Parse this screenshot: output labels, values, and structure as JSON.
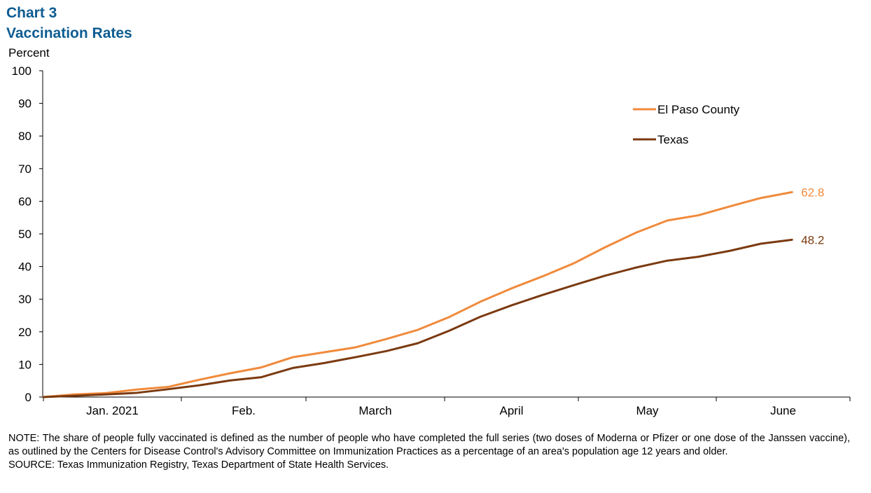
{
  "chart_number": "Chart 3",
  "chart_data": {
    "type": "line",
    "title": "Vaccination Rates",
    "ylabel": "Percent",
    "xlabel": "",
    "ylim": [
      0,
      100
    ],
    "yticks": [
      0,
      10,
      20,
      30,
      40,
      50,
      60,
      70,
      80,
      90,
      100
    ],
    "month_labels": [
      "Jan. 2021",
      "Feb.",
      "March",
      "April",
      "May",
      "June"
    ],
    "x": [
      "2021-01-01",
      "2021-01-08",
      "2021-01-15",
      "2021-01-22",
      "2021-01-29",
      "2021-02-05",
      "2021-02-12",
      "2021-02-19",
      "2021-02-26",
      "2021-03-05",
      "2021-03-12",
      "2021-03-19",
      "2021-03-26",
      "2021-04-02",
      "2021-04-09",
      "2021-04-16",
      "2021-04-23",
      "2021-04-30",
      "2021-05-07",
      "2021-05-14",
      "2021-05-21",
      "2021-05-28",
      "2021-06-04",
      "2021-06-11",
      "2021-06-18",
      "2021-06-25"
    ],
    "series": [
      {
        "name": "El Paso County",
        "color": "#f08a3c",
        "values": [
          0.0,
          0.8,
          1.2,
          2.3,
          3.1,
          5.3,
          7.3,
          9.1,
          12.2,
          13.7,
          15.2,
          17.8,
          20.6,
          24.5,
          29.2,
          33.3,
          37.0,
          41.0,
          45.9,
          50.4,
          54.1,
          55.7,
          58.4,
          61.0,
          62.8,
          62.8
        ],
        "end_label": "62.8"
      },
      {
        "name": "Texas",
        "color": "#7b3a10",
        "values": [
          0.0,
          0.4,
          0.8,
          1.3,
          2.4,
          3.6,
          5.1,
          6.1,
          8.9,
          10.4,
          12.2,
          14.1,
          16.5,
          20.3,
          24.6,
          28.1,
          31.3,
          34.3,
          37.2,
          39.7,
          41.8,
          43.0,
          44.8,
          47.0,
          48.2,
          48.2
        ],
        "end_label": "48.2"
      }
    ],
    "legend_placement": "top-right",
    "grid": false
  },
  "notes": {
    "note": "NOTE: The share of people fully vaccinated is defined as the number of people who have completed the full series (two doses of Moderna or Pfizer or one dose of the Janssen vaccine), as outlined by the Centers for Disease Control's Advisory Committee on Immunization Practices as a percentage of an area's population age 12 years and older.",
    "source": "SOURCE: Texas Immunization Registry, Texas Department of State Health Services."
  }
}
